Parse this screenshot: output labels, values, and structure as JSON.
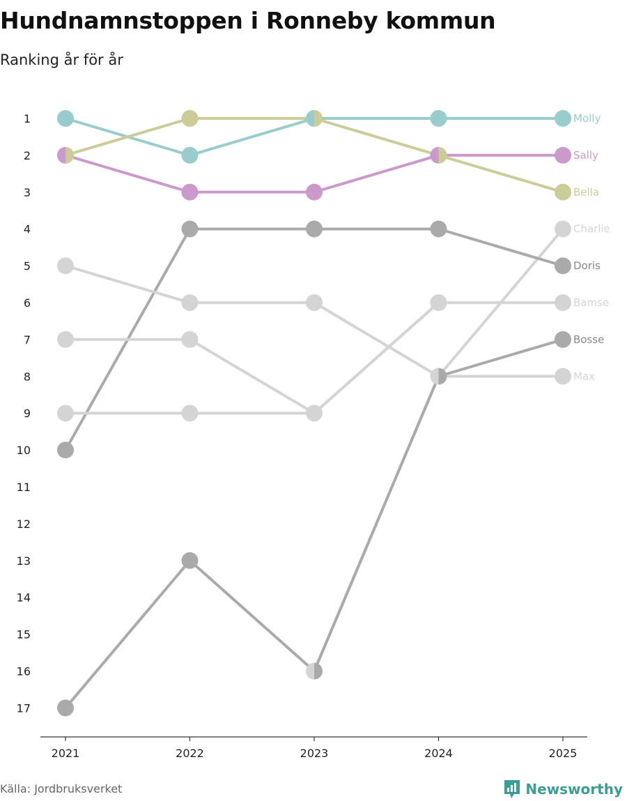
{
  "title": "Hundnamnstoppen i Ronneby kommun",
  "subtitle": "Ranking år för år",
  "source": "Källa: Jordbruksverket",
  "brand": "Newsworthy",
  "colors": {
    "molly": "#99cccc",
    "bella": "#cccc99",
    "sally": "#cc99cc",
    "dark_gray": "#aaaaaa",
    "light_gray": "#d4d4d4",
    "brand": "#3a9e97"
  },
  "chart_data": {
    "type": "line",
    "title": "Hundnamnstoppen i Ronneby kommun",
    "subtitle": "Ranking år för år",
    "x": [
      "2021",
      "2022",
      "2023",
      "2024",
      "2025"
    ],
    "y_ticks": [
      1,
      2,
      3,
      4,
      5,
      6,
      7,
      8,
      9,
      10,
      11,
      12,
      13,
      14,
      15,
      16,
      17
    ],
    "y_inverted": true,
    "ylim": [
      1,
      17
    ],
    "legend": "end-of-line labels",
    "series": [
      {
        "name": "Molly",
        "values": [
          1,
          2,
          1,
          1,
          1
        ],
        "color": "#99cccc",
        "highlight": true
      },
      {
        "name": "Sally",
        "values": [
          2,
          3,
          3,
          2,
          2
        ],
        "color": "#cc99cc",
        "highlight": true
      },
      {
        "name": "Bella",
        "values": [
          2,
          1,
          1,
          2,
          3
        ],
        "color": "#cccc99",
        "highlight": true
      },
      {
        "name": "Charlie",
        "values": [
          null,
          null,
          16,
          8,
          4
        ],
        "color": "#d4d4d4",
        "highlight": false
      },
      {
        "name": "Doris",
        "values": [
          10,
          4,
          4,
          4,
          5
        ],
        "color": "#aaaaaa",
        "highlight": false
      },
      {
        "name": "Bamse",
        "values": [
          9,
          9,
          9,
          6,
          6
        ],
        "color": "#d4d4d4",
        "highlight": false
      },
      {
        "name": "Bosse",
        "values": [
          17,
          13,
          16,
          8,
          7
        ],
        "color": "#aaaaaa",
        "highlight": false
      },
      {
        "name": "Max",
        "values": [
          5,
          6,
          6,
          8,
          8
        ],
        "color": "#d4d4d4",
        "highlight": false
      },
      {
        "name": "",
        "values": [
          7,
          7,
          9,
          6,
          null
        ],
        "color": "#d4d4d4",
        "highlight": false
      }
    ]
  }
}
